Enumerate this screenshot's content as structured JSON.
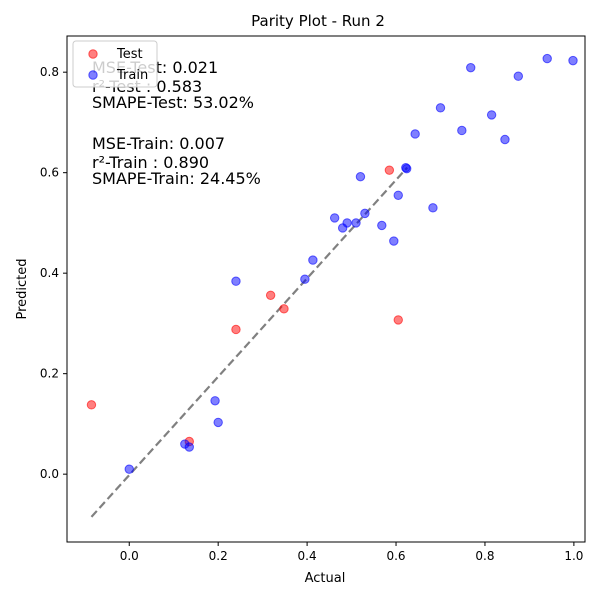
{
  "chart_data": {
    "type": "scatter",
    "title": "Parity Plot - Run 2",
    "xlabel": "Actual",
    "ylabel": "Predicted",
    "xlim": [
      -0.14,
      1.025
    ],
    "ylim": [
      -0.135,
      0.872
    ],
    "xticks": [
      0.0,
      0.2,
      0.4,
      0.6,
      0.8,
      1.0
    ],
    "xtick_labels": [
      "0.0",
      "0.2",
      "0.4",
      "0.6",
      "0.8",
      "1.0"
    ],
    "yticks": [
      0.0,
      0.2,
      0.4,
      0.6,
      0.8
    ],
    "ytick_labels": [
      "0.0",
      "0.2",
      "0.4",
      "0.6",
      "0.8"
    ],
    "grid": false,
    "legend_position": "top-left",
    "parity_line": {
      "x": [
        -0.085,
        0.625
      ],
      "y": [
        -0.085,
        0.61
      ],
      "style": "dashed",
      "color": "#808080"
    },
    "series": [
      {
        "name": "Test",
        "color": "#ff0000",
        "points": [
          [
            -0.085,
            0.138
          ],
          [
            0.135,
            0.065
          ],
          [
            0.24,
            0.288
          ],
          [
            0.318,
            0.356
          ],
          [
            0.348,
            0.329
          ],
          [
            0.585,
            0.605
          ],
          [
            0.605,
            0.307
          ]
        ]
      },
      {
        "name": "Train",
        "color": "#0000ff",
        "points": [
          [
            0.0,
            0.01
          ],
          [
            0.125,
            0.06
          ],
          [
            0.135,
            0.054
          ],
          [
            0.193,
            0.146
          ],
          [
            0.2,
            0.103
          ],
          [
            0.24,
            0.384
          ],
          [
            0.395,
            0.388
          ],
          [
            0.413,
            0.426
          ],
          [
            0.462,
            0.51
          ],
          [
            0.48,
            0.49
          ],
          [
            0.49,
            0.5
          ],
          [
            0.51,
            0.5
          ],
          [
            0.52,
            0.592
          ],
          [
            0.53,
            0.519
          ],
          [
            0.568,
            0.495
          ],
          [
            0.595,
            0.464
          ],
          [
            0.605,
            0.555
          ],
          [
            0.622,
            0.61
          ],
          [
            0.624,
            0.608
          ],
          [
            0.643,
            0.677
          ],
          [
            0.683,
            0.53
          ],
          [
            0.7,
            0.729
          ],
          [
            0.748,
            0.684
          ],
          [
            0.768,
            0.809
          ],
          [
            0.815,
            0.715
          ],
          [
            0.845,
            0.666
          ],
          [
            0.875,
            0.792
          ],
          [
            0.94,
            0.827
          ],
          [
            0.998,
            0.823
          ]
        ]
      }
    ],
    "annotations": [
      "MSE-Test: 0.021",
      "r²-Test : 0.583",
      "SMAPE-Test: 53.02%",
      "MSE-Train: 0.007",
      "r²-Train : 0.890",
      "SMAPE-Train: 24.45%"
    ]
  }
}
